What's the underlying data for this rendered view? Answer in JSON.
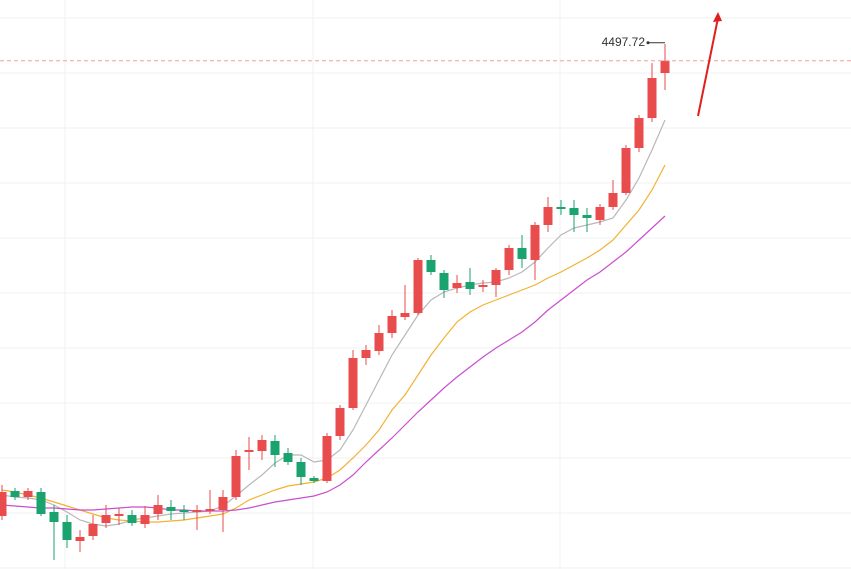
{
  "chart_data": {
    "type": "candlestick",
    "ylim": [
      4294.4,
      4522
    ],
    "up_color": "#e84c4c",
    "down_color": "#1aa36f",
    "open": [
      4315.6,
      4325.6,
      4323.2,
      4325.2,
      4317.2,
      4313.2,
      4305.6,
      4307.6,
      4312.8,
      4315.6,
      4316,
      4312.4,
      4316.4,
      4319.2,
      4318,
      4317.2,
      4317.6,
      4318,
      4323.2,
      4341.2,
      4341.6,
      4345.6,
      4340.8,
      4337.2,
      4330.8,
      4329.6,
      4347.6,
      4358.8,
      4378.8,
      4381.6,
      4388.8,
      4395.2,
      4396.8,
      4418,
      4412.8,
      4406.8,
      4409.2,
      4407.2,
      4408,
      4414,
      4422.8,
      4418,
      4432,
      4439.2,
      4438.8,
      4436,
      4434,
      4439.2,
      4444.8,
      4462.8,
      4474.8,
      4492.8
    ],
    "high": [
      4328,
      4326.8,
      4326.8,
      4326.8,
      4320,
      4316,
      4310,
      4316,
      4320,
      4318.8,
      4318,
      4319.6,
      4324,
      4322,
      4320,
      4320,
      4326,
      4326,
      4342,
      4347.2,
      4348,
      4348,
      4342.8,
      4338.8,
      4331.6,
      4348.8,
      4360,
      4382,
      4384,
      4392,
      4398,
      4408,
      4418.8,
      4420,
      4414,
      4412,
      4414.8,
      4410,
      4414.8,
      4424,
      4428,
      4433.2,
      4443.2,
      4442,
      4442,
      4438.8,
      4440.4,
      4450,
      4464,
      4476,
      4496.8,
      4504.4
    ],
    "low": [
      4314,
      4322,
      4322,
      4315.6,
      4298,
      4302.8,
      4301.2,
      4306,
      4310.8,
      4312,
      4311.6,
      4310.8,
      4314,
      4314,
      4314,
      4310,
      4316.4,
      4309.2,
      4322,
      4334,
      4338,
      4335.2,
      4336,
      4328,
      4328.8,
      4328.8,
      4346,
      4358,
      4376,
      4380,
      4386.8,
      4394,
      4396,
      4412,
      4402.8,
      4404.8,
      4404,
      4405.2,
      4403.2,
      4412,
      4414.8,
      4410,
      4429.2,
      4436,
      4429.2,
      4429.2,
      4432,
      4438,
      4444,
      4461.2,
      4473.2,
      4486
    ],
    "close": [
      4325.2,
      4323.2,
      4325.6,
      4316.4,
      4313.2,
      4306,
      4307.2,
      4312.4,
      4316,
      4316.4,
      4312.8,
      4316,
      4320,
      4317.6,
      4317.2,
      4318,
      4318.4,
      4323.2,
      4339.6,
      4342,
      4346,
      4340,
      4337.2,
      4331.2,
      4329.6,
      4347.6,
      4358.8,
      4378.8,
      4382,
      4388.8,
      4395.6,
      4396.8,
      4418,
      4413.2,
      4406,
      4408.8,
      4406.4,
      4408,
      4414,
      4422.8,
      4418.4,
      4432,
      4439.2,
      4438.4,
      4436,
      4434.8,
      4439.2,
      4444.8,
      4462.8,
      4474.8,
      4490.8,
      4497.72
    ],
    "ma": [
      {
        "color": "#b8b8b8",
        "values": [
          4324,
          4323.2,
          4322.8,
          4322,
          4320,
          4317.2,
          4314,
          4312.4,
          4311.6,
          4312.4,
          4314,
          4314.8,
          4315.6,
          4316.4,
          4316.8,
          4317.2,
          4317.6,
          4319.6,
          4323.6,
          4328,
          4332,
          4336.8,
          4340,
          4340,
          4337.2,
          4338,
          4342,
          4350,
          4360,
          4370,
          4380,
          4388,
          4396,
          4402,
          4405.2,
          4406.8,
          4408,
          4408.8,
          4409.2,
          4410.8,
          4413.2,
          4417.2,
          4422.8,
          4428,
          4430.8,
          4432,
          4433.2,
          4434.8,
          4442,
          4450.8,
          4462,
          4474
        ]
      },
      {
        "color": "#f2b233",
        "values": [
          4326,
          4325.2,
          4324,
          4322.8,
          4321.2,
          4319.6,
          4318,
          4316.4,
          4314.8,
          4314,
          4313.6,
          4313.2,
          4313.2,
          4313.6,
          4314,
          4314.8,
          4315.6,
          4316.4,
          4318.8,
          4322,
          4324,
          4326,
          4327.6,
          4328.4,
          4329.2,
          4330.8,
          4334,
          4338.8,
          4344,
          4350,
          4358,
          4364,
          4372,
          4380,
          4386.8,
          4393.2,
          4397.2,
          4400,
          4402,
          4404,
          4406,
          4408,
          4410.8,
          4413.2,
          4416,
          4418.8,
          4422,
          4426,
          4432,
          4438,
          4446,
          4456
        ]
      },
      {
        "color": "#c94fcf",
        "values": [
          4320,
          4319.6,
          4319.2,
          4318.8,
          4318.8,
          4318.4,
          4318,
          4318,
          4318.4,
          4318.8,
          4319.2,
          4319.2,
          4318.8,
          4318,
          4318,
          4317.6,
          4317.6,
          4317.6,
          4318,
          4318.8,
          4320,
          4321.2,
          4322,
          4322.8,
          4323.6,
          4325.2,
          4328,
          4332,
          4337.2,
          4342,
          4346.8,
          4352,
          4357.2,
          4362,
          4366.8,
          4371.2,
          4375.2,
          4379.2,
          4382.8,
          4386,
          4389.2,
          4393.2,
          4398,
          4402,
          4406,
          4410,
          4413.2,
          4417.2,
          4421.2,
          4426,
          4430.8,
          4435.6
        ]
      }
    ],
    "price_line": 4497.72,
    "price_line_color": "#f0a090"
  }
}
